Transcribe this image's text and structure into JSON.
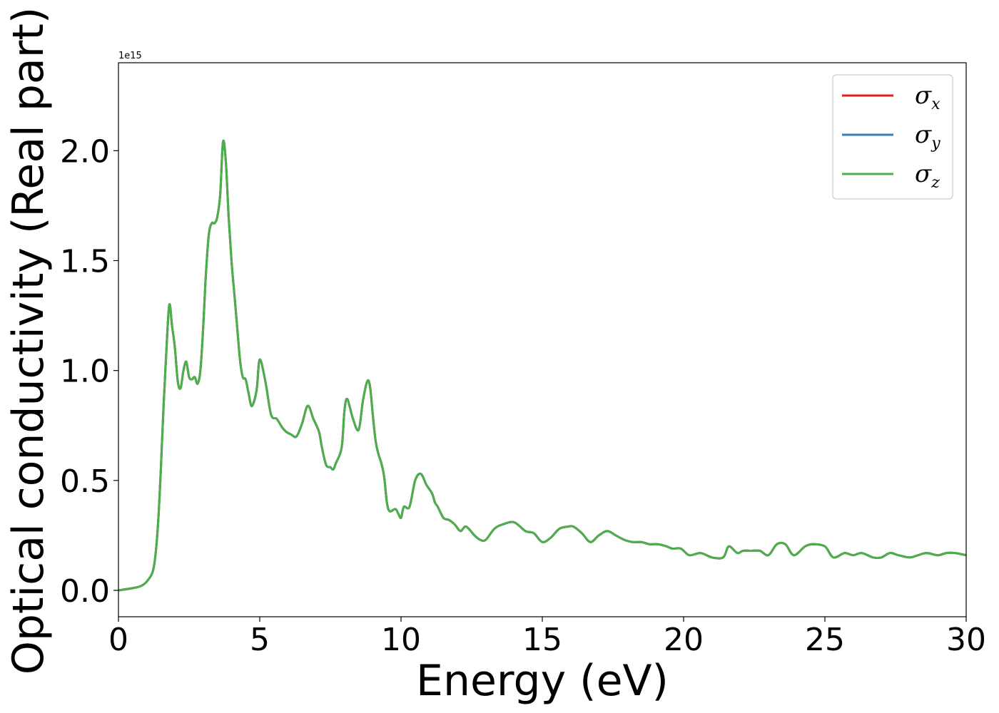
{
  "chart_data": {
    "type": "line",
    "xlabel": "Energy (eV)",
    "ylabel": "Optical conductivity (Real part)",
    "y_offset_label": "1e15",
    "xlim": [
      0,
      30
    ],
    "ylim": [
      -0.12,
      2.4
    ],
    "x_ticks": [
      0,
      5,
      10,
      15,
      20,
      25,
      30
    ],
    "x_tick_labels": [
      "0",
      "5",
      "10",
      "15",
      "20",
      "25",
      "30"
    ],
    "y_ticks": [
      0.0,
      0.5,
      1.0,
      1.5,
      2.0
    ],
    "y_tick_labels": [
      "0.0",
      "0.5",
      "1.0",
      "1.5",
      "2.0"
    ],
    "grid": false,
    "legend_position": "top-right",
    "colors": {
      "sigma_x": "#e41a1c",
      "sigma_y": "#377eb8",
      "sigma_z": "#4daf4a"
    },
    "series": [
      {
        "name": "σx",
        "symbol": "σ",
        "subscript": "x",
        "color": "#e41a1c",
        "ref": "sigma_z"
      },
      {
        "name": "σy",
        "symbol": "σ",
        "subscript": "y",
        "color": "#377eb8",
        "ref": "sigma_z"
      },
      {
        "name": "σz",
        "symbol": "σ",
        "subscript": "z",
        "color": "#4daf4a",
        "x": [
          0,
          0.5,
          0.8,
          1.0,
          1.2,
          1.3,
          1.4,
          1.5,
          1.6,
          1.7,
          1.8,
          1.9,
          2.0,
          2.1,
          2.2,
          2.3,
          2.4,
          2.5,
          2.6,
          2.7,
          2.8,
          2.9,
          3.0,
          3.1,
          3.2,
          3.3,
          3.4,
          3.5,
          3.6,
          3.7,
          3.8,
          3.9,
          4.0,
          4.1,
          4.2,
          4.3,
          4.4,
          4.5,
          4.6,
          4.7,
          4.8,
          4.9,
          5.0,
          5.2,
          5.4,
          5.6,
          5.8,
          5.95,
          6.1,
          6.3,
          6.5,
          6.7,
          6.9,
          7.1,
          7.2,
          7.35,
          7.5,
          7.6,
          7.7,
          7.9,
          8.0,
          8.1,
          8.3,
          8.5,
          8.65,
          8.8,
          8.9,
          9.0,
          9.1,
          9.2,
          9.3,
          9.4,
          9.5,
          9.6,
          9.8,
          9.9,
          10.0,
          10.1,
          10.3,
          10.5,
          10.7,
          10.9,
          11.1,
          11.2,
          11.3,
          11.5,
          11.7,
          11.9,
          12.1,
          12.3,
          12.6,
          12.8,
          13.0,
          13.3,
          13.6,
          14.0,
          14.4,
          14.7,
          15.0,
          15.3,
          15.6,
          15.9,
          16.1,
          16.4,
          16.7,
          17.0,
          17.3,
          17.6,
          17.9,
          18.2,
          18.5,
          18.8,
          19.1,
          19.4,
          19.6,
          19.9,
          20.2,
          20.6,
          21.0,
          21.4,
          21.6,
          21.9,
          22.1,
          22.4,
          22.7,
          23.0,
          23.3,
          23.6,
          23.9,
          24.3,
          24.6,
          25.0,
          25.3,
          25.7,
          26.0,
          26.3,
          26.7,
          27.0,
          27.3,
          27.6,
          28.0,
          28.3,
          28.6,
          29.0,
          29.3,
          29.6,
          30.0
        ],
        "y": [
          0.0,
          0.01,
          0.02,
          0.04,
          0.08,
          0.15,
          0.3,
          0.55,
          0.85,
          1.1,
          1.3,
          1.2,
          1.1,
          0.95,
          0.92,
          1.0,
          1.04,
          0.97,
          0.96,
          0.97,
          0.94,
          1.0,
          1.2,
          1.45,
          1.62,
          1.67,
          1.67,
          1.7,
          1.8,
          2.04,
          1.95,
          1.7,
          1.5,
          1.35,
          1.2,
          1.05,
          0.97,
          0.96,
          0.9,
          0.84,
          0.86,
          0.92,
          1.05,
          0.95,
          0.8,
          0.78,
          0.74,
          0.72,
          0.71,
          0.7,
          0.76,
          0.84,
          0.78,
          0.72,
          0.65,
          0.57,
          0.56,
          0.55,
          0.58,
          0.65,
          0.82,
          0.87,
          0.78,
          0.73,
          0.86,
          0.95,
          0.93,
          0.8,
          0.68,
          0.62,
          0.58,
          0.52,
          0.4,
          0.36,
          0.37,
          0.35,
          0.33,
          0.38,
          0.38,
          0.5,
          0.53,
          0.48,
          0.44,
          0.4,
          0.38,
          0.33,
          0.32,
          0.3,
          0.27,
          0.29,
          0.25,
          0.23,
          0.23,
          0.28,
          0.3,
          0.31,
          0.27,
          0.26,
          0.22,
          0.24,
          0.28,
          0.29,
          0.29,
          0.26,
          0.22,
          0.25,
          0.27,
          0.25,
          0.23,
          0.22,
          0.22,
          0.21,
          0.21,
          0.2,
          0.19,
          0.19,
          0.16,
          0.17,
          0.15,
          0.15,
          0.2,
          0.17,
          0.18,
          0.18,
          0.18,
          0.16,
          0.21,
          0.21,
          0.16,
          0.2,
          0.21,
          0.2,
          0.15,
          0.17,
          0.16,
          0.17,
          0.15,
          0.15,
          0.17,
          0.16,
          0.15,
          0.16,
          0.17,
          0.16,
          0.17,
          0.17,
          0.16
        ]
      }
    ]
  }
}
